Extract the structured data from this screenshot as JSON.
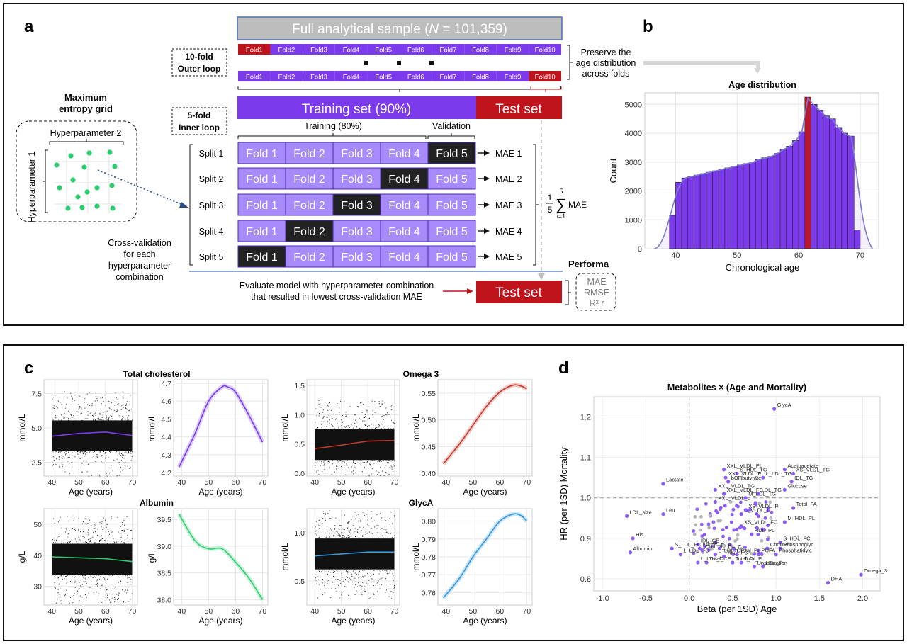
{
  "panels": {
    "a": "a",
    "b": "b",
    "c": "c",
    "d": "d"
  },
  "colors": {
    "purple": "#7c3aed",
    "fold_purple": "#a78bfa",
    "fold_blue": "#6d28d9",
    "red": "#c0141c",
    "dark": "#222222",
    "grey": "#bdbdbd",
    "green_dot": "#2ecc71"
  },
  "a": {
    "full_sample_prefix": "Full analytical sample (",
    "full_sample_n": "N",
    "full_sample_suffix": " = 101,359)",
    "outer_loop": [
      "10-fold",
      "Outer loop"
    ],
    "inner_loop": [
      "5-fold",
      "Inner loop"
    ],
    "outer_folds": [
      "Fold1",
      "Fold2",
      "Fold3",
      "Fold4",
      "Fold5",
      "Fold6",
      "Fold7",
      "Fold8",
      "Fold9",
      "Fold10"
    ],
    "preserve_note": [
      "Preserve the",
      "age distribution",
      "across folds"
    ],
    "training_set": "Training set (90%)",
    "test_set": "Test set",
    "training_80": "Training (80%)",
    "validation": "Validation",
    "max_entropy": [
      "Maximum",
      "entropy grid"
    ],
    "hyper2": "Hyperparameter 2",
    "hyper1": "Hyperparameter 1",
    "splits": [
      "Split 1",
      "Split 2",
      "Split 3",
      "Split 4",
      "Split 5"
    ],
    "inner_folds": [
      "Fold 1",
      "Fold 2",
      "Fold 3",
      "Fold 4",
      "Fold 5"
    ],
    "maes": [
      "MAE 1",
      "MAE 2",
      "MAE 3",
      "MAE 4",
      "MAE 5"
    ],
    "formula": {
      "frac_top": "1",
      "frac_bot": "5",
      "sum_top": "5",
      "sum_bot": "i=1",
      "term": "MAE"
    },
    "cv_note": [
      "Cross-validation",
      "for each",
      "hyperparameter",
      "combination"
    ],
    "evaluate_note": [
      "Evaluate model with hyperparameter combination",
      "that resulted in lowest cross-validation MAE"
    ],
    "performance": "Performa",
    "metrics": [
      "MAE",
      "RMSE",
      "R² r"
    ]
  },
  "b": {
    "chart_data": {
      "type": "bar",
      "title": "Age distribution",
      "xlabel": "Chronological age",
      "ylabel": "Count",
      "x_ticks": [
        40,
        50,
        60,
        70
      ],
      "y_ticks": [
        0,
        1000,
        2000,
        3000,
        4000,
        5000
      ],
      "ylim": [
        0,
        5400
      ],
      "xlim": [
        35,
        73
      ],
      "bin_starts": [
        39,
        40,
        41,
        42,
        43,
        44,
        45,
        46,
        47,
        48,
        49,
        50,
        51,
        52,
        53,
        54,
        55,
        56,
        57,
        58,
        59,
        60,
        61,
        62,
        63,
        64,
        65,
        66,
        67,
        68,
        69
      ],
      "values": [
        1150,
        2300,
        2450,
        2500,
        2550,
        2600,
        2650,
        2700,
        2750,
        2800,
        2850,
        2900,
        2950,
        3000,
        3100,
        3150,
        3200,
        3300,
        3450,
        3550,
        3750,
        4050,
        5250,
        5000,
        4800,
        4600,
        4500,
        4200,
        4000,
        3900,
        650
      ],
      "highlight_bin": 61
    }
  },
  "c": {
    "titles": [
      "Total cholesterol",
      "Omega 3",
      "Albumin",
      "GlycA"
    ],
    "xlabel": "Age (years)",
    "ylabels": [
      "mmol/L",
      "mmol/L",
      "mmol/L",
      "mmol/L",
      "g/L",
      "g/L",
      "mmol/L",
      "mmol/L"
    ],
    "chart_data": [
      {
        "type": "scatter",
        "title": "Total cholesterol",
        "x_ticks": [
          40,
          50,
          60,
          70
        ],
        "y_ticks": [
          2.5,
          5.0,
          7.5
        ],
        "ylim": [
          1.5,
          8.5
        ],
        "xlim": [
          37,
          72
        ],
        "trend_x": [
          40,
          50,
          60,
          70
        ],
        "trend_y": [
          4.4,
          4.6,
          4.7,
          4.45
        ],
        "color": "#7c3aed"
      },
      {
        "type": "line",
        "title": "",
        "x_ticks": [
          40,
          50,
          60,
          70
        ],
        "y_ticks": [
          4.2,
          4.3,
          4.4,
          4.5,
          4.6,
          4.7
        ],
        "ylim": [
          4.18,
          4.72
        ],
        "xlim": [
          37,
          72
        ],
        "x": [
          39,
          45,
          50,
          55,
          57,
          60,
          65,
          70
        ],
        "y": [
          4.23,
          4.42,
          4.6,
          4.68,
          4.68,
          4.65,
          4.52,
          4.37
        ],
        "color": "#7c3aed"
      },
      {
        "type": "scatter",
        "title": "Omega 3",
        "x_ticks": [
          40,
          50,
          60,
          70
        ],
        "y_ticks": [
          0.0,
          0.5,
          1.0,
          1.5
        ],
        "ylim": [
          -0.05,
          1.6
        ],
        "xlim": [
          37,
          72
        ],
        "trend_x": [
          40,
          50,
          60,
          70
        ],
        "trend_y": [
          0.42,
          0.48,
          0.55,
          0.56
        ],
        "color": "#c0392b"
      },
      {
        "type": "line",
        "title": "",
        "x_ticks": [
          40,
          50,
          60,
          70
        ],
        "y_ticks": [
          0.4,
          0.45,
          0.5,
          0.55
        ],
        "ylim": [
          0.395,
          0.575
        ],
        "xlim": [
          37,
          72
        ],
        "x": [
          39,
          45,
          50,
          55,
          60,
          65,
          68,
          70
        ],
        "y": [
          0.418,
          0.455,
          0.49,
          0.525,
          0.552,
          0.565,
          0.563,
          0.558
        ],
        "color": "#c0392b"
      },
      {
        "type": "scatter",
        "title": "Albumin",
        "x_ticks": [
          40,
          50,
          60,
          70
        ],
        "y_ticks": [
          30,
          40,
          50
        ],
        "ylim": [
          24,
          55
        ],
        "xlim": [
          37,
          72
        ],
        "trend_x": [
          40,
          50,
          60,
          70
        ],
        "trend_y": [
          39.5,
          39.2,
          38.9,
          38.0
        ],
        "color": "#2ecc71"
      },
      {
        "type": "line",
        "title": "",
        "x_ticks": [
          40,
          50,
          60,
          70
        ],
        "y_ticks": [
          38.0,
          38.5,
          39.0,
          39.5
        ],
        "ylim": [
          37.9,
          39.7
        ],
        "xlim": [
          37,
          72
        ],
        "x": [
          39,
          45,
          50,
          55,
          60,
          65,
          70
        ],
        "y": [
          39.6,
          39.1,
          38.95,
          38.95,
          38.7,
          38.4,
          38.0
        ],
        "color": "#2ecc71"
      },
      {
        "type": "scatter",
        "title": "GlycA",
        "x_ticks": [
          40,
          50,
          60,
          70
        ],
        "y_ticks": [
          0.5,
          1.0
        ],
        "ylim": [
          0.25,
          1.25
        ],
        "xlim": [
          37,
          72
        ],
        "trend_x": [
          40,
          50,
          60,
          70
        ],
        "trend_y": [
          0.76,
          0.78,
          0.8,
          0.8
        ],
        "color": "#3498db"
      },
      {
        "type": "line",
        "title": "",
        "x_ticks": [
          40,
          50,
          60,
          70
        ],
        "y_ticks": [
          0.76,
          0.77,
          0.78,
          0.79,
          0.8
        ],
        "ylim": [
          0.753,
          0.807
        ],
        "xlim": [
          37,
          72
        ],
        "x": [
          39,
          45,
          50,
          55,
          60,
          65,
          68,
          70
        ],
        "y": [
          0.757,
          0.768,
          0.78,
          0.79,
          0.8,
          0.804,
          0.803,
          0.8
        ],
        "color": "#3498db"
      }
    ]
  },
  "d": {
    "chart_data": {
      "type": "scatter",
      "title": "Metabolites × (Age and Mortality)",
      "xlabel": "Beta (per 1SD) Age",
      "ylabel": "HR (per 1SD) Mortality",
      "x_ticks": [
        -1.0,
        -0.5,
        0.0,
        0.5,
        1.0,
        1.5,
        2.0
      ],
      "y_ticks": [
        0.8,
        0.9,
        1.0,
        1.1,
        1.2
      ],
      "xlim": [
        -1.1,
        2.2
      ],
      "ylim": [
        0.77,
        1.25
      ],
      "points": [
        {
          "label": "GlycA",
          "x": 0.98,
          "y": 1.22
        },
        {
          "label": "Omega_3",
          "x": 1.98,
          "y": 0.81
        },
        {
          "label": "DHA",
          "x": 1.6,
          "y": 0.79
        },
        {
          "label": "LDL_size",
          "x": -0.72,
          "y": 0.955
        },
        {
          "label": "His",
          "x": -0.65,
          "y": 0.9
        },
        {
          "label": "Albumin",
          "x": -0.68,
          "y": 0.865
        },
        {
          "label": "Lactate",
          "x": -0.3,
          "y": 1.035
        },
        {
          "label": "Leu",
          "x": -0.3,
          "y": 0.96
        },
        {
          "label": "Acetoacetate",
          "x": 1.1,
          "y": 1.07
        },
        {
          "label": "XS_VLDL_TG",
          "x": 1.2,
          "y": 1.06
        },
        {
          "label": "IDL_TG",
          "x": 1.18,
          "y": 1.04
        },
        {
          "label": "Glucose",
          "x": 1.1,
          "y": 1.02
        },
        {
          "label": "Total_FA",
          "x": 1.2,
          "y": 0.975
        },
        {
          "label": "M_HDL_PL",
          "x": 1.1,
          "y": 0.94
        },
        {
          "label": "S_HDL_FC",
          "x": 1.05,
          "y": 0.89
        },
        {
          "label": "Phosphoglyc",
          "x": 1.05,
          "y": 0.875
        },
        {
          "label": "Phosphatidylc",
          "x": 1.0,
          "y": 0.86
        },
        {
          "label": "Cholines",
          "x": 0.9,
          "y": 0.875
        },
        {
          "label": "PUFA",
          "x": 0.8,
          "y": 0.86
        },
        {
          "label": "HDL_P",
          "x": 0.85,
          "y": 0.83
        },
        {
          "label": "Total_P",
          "x": 0.6,
          "y": 0.84
        },
        {
          "label": "Unsaturation",
          "x": 0.75,
          "y": 0.83
        },
        {
          "label": "Total_C",
          "x": 0.5,
          "y": 0.84
        },
        {
          "label": "Total_CE",
          "x": 0.2,
          "y": 0.84
        },
        {
          "label": "L_LDL_C",
          "x": 0.1,
          "y": 0.84
        },
        {
          "label": "L_LDL_FC",
          "x": -0.1,
          "y": 0.86
        },
        {
          "label": "IDL_C",
          "x": 0.12,
          "y": 0.875
        },
        {
          "label": "LDL_C",
          "x": 0.18,
          "y": 0.88
        },
        {
          "label": "IDL_CE",
          "x": 0.1,
          "y": 0.885
        },
        {
          "label": "S_LDL_FC",
          "x": -0.2,
          "y": 0.875
        },
        {
          "label": "Clinical_LDL_C",
          "x": 0.15,
          "y": 0.87
        },
        {
          "label": "LDL_L",
          "x": 0.35,
          "y": 0.875
        },
        {
          "label": "L_LDL_CE",
          "x": 0.3,
          "y": 0.86
        },
        {
          "label": "Total_FC",
          "x": 0.4,
          "y": 0.855
        },
        {
          "label": "Total_PL",
          "x": 0.55,
          "y": 0.86
        },
        {
          "label": "HDL_PL",
          "x": 0.72,
          "y": 0.91
        },
        {
          "label": "XS_VLDL_FC",
          "x": 0.6,
          "y": 0.93
        },
        {
          "label": "S_VLDL_L",
          "x": 0.6,
          "y": 0.96
        },
        {
          "label": "XS_VLDL_P",
          "x": 0.65,
          "y": 0.97
        },
        {
          "label": "M_LDL_TG",
          "x": 0.65,
          "y": 1.0
        },
        {
          "label": "LDL_TG",
          "x": 0.8,
          "y": 1.01
        },
        {
          "label": "L_LDL_TG",
          "x": 0.85,
          "y": 1.05
        },
        {
          "label": "S_HDL_TG",
          "x": 0.55,
          "y": 1.06
        },
        {
          "label": "bOHbutyrate",
          "x": 0.45,
          "y": 1.04
        },
        {
          "label": "XXL_VLDL_PL",
          "x": 0.4,
          "y": 1.07
        },
        {
          "label": "XXL_VLDL_P",
          "x": 0.42,
          "y": 1.05
        },
        {
          "label": "XXL_VLDL_TG",
          "x": 0.3,
          "y": 1.02
        },
        {
          "label": "XXL_VLDL_FC",
          "x": 0.4,
          "y": 1.01
        },
        {
          "label": "XXL_VLDL_L",
          "x": 0.3,
          "y": 0.99
        }
      ]
    }
  }
}
